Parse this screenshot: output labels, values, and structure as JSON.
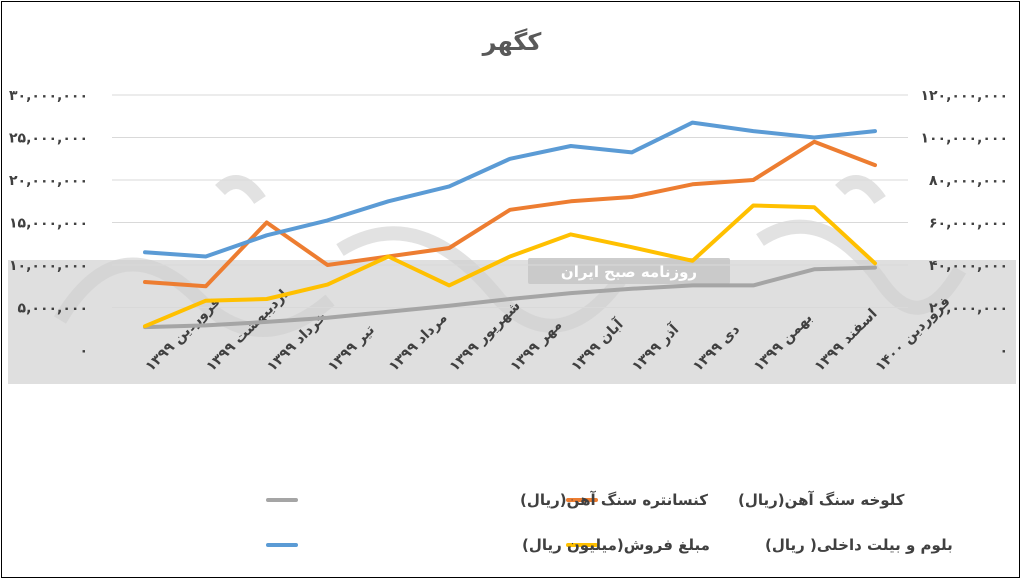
{
  "chart_data": {
    "type": "line",
    "title": "کگهر",
    "categories": [
      "فروردین ۱۳۹۹",
      "اردیبهشت ۱۳۹۹",
      "خرداد ۱۳۹۹",
      "تیر ۱۳۹۹",
      "مرداد ۱۳۹۹",
      "شهریور ۱۳۹۹",
      "مهر ۱۳۹۹",
      "آبان ۱۳۹۹",
      "آذر ۱۳۹۹",
      "دی ۱۳۹۹",
      "بهمن ۱۳۹۹",
      "اسفند ۱۳۹۹",
      "فروردین ۱۴۰۰"
    ],
    "left_axis": {
      "ylim": [
        0,
        30000000
      ],
      "ticks": [
        "۰",
        "۵,۰۰۰,۰۰۰",
        "۱۰,۰۰۰,۰۰۰",
        "۱۵,۰۰۰,۰۰۰",
        "۲۰,۰۰۰,۰۰۰",
        "۲۵,۰۰۰,۰۰۰",
        "۳۰,۰۰۰,۰۰۰"
      ]
    },
    "right_axis": {
      "ylim": [
        0,
        120000000
      ],
      "ticks": [
        "۰",
        "۲۰,۰۰۰,۰۰۰",
        "۴۰,۰۰۰,۰۰۰",
        "۶۰,۰۰۰,۰۰۰",
        "۸۰,۰۰۰,۰۰۰",
        "۱۰۰,۰۰۰,۰۰۰",
        "۱۲۰,۰۰۰,۰۰۰"
      ]
    },
    "grid": true,
    "legend_position": "bottom",
    "series": [
      {
        "name": "کلوخه سنگ آهن(ریال)",
        "color": "#ED7D31",
        "axis": "right",
        "values": [
          32000000,
          30000000,
          60000000,
          40000000,
          44000000,
          48000000,
          66000000,
          70000000,
          72000000,
          78000000,
          80000000,
          98000000,
          87000000
        ]
      },
      {
        "name": "کنسانتره سنگ آهن(ریال)",
        "color": "#A5A5A5",
        "axis": "left",
        "values": [
          2700000,
          2900000,
          3300000,
          3800000,
          4500000,
          5200000,
          6000000,
          6700000,
          7200000,
          7600000,
          7600000,
          9500000,
          9700000
        ]
      },
      {
        "name": "مبلغ فروش(میلیون ریال)",
        "color": "#FFC000",
        "axis": "left",
        "values": [
          2800000,
          5800000,
          6000000,
          7700000,
          11000000,
          7600000,
          11000000,
          13600000,
          12100000,
          10500000,
          17000000,
          16800000,
          10200000
        ]
      },
      {
        "name": "بلوم و بیلت داخلی( ریال)",
        "color": "#5B9BD5",
        "axis": "right",
        "values": [
          46000000,
          44000000,
          54000000,
          61000000,
          70000000,
          77000000,
          90000000,
          96000000,
          93000000,
          107000000,
          103000000,
          100000000,
          103000000
        ]
      }
    ]
  },
  "watermark": {
    "band_text": "روزنامه صبح ایران"
  }
}
